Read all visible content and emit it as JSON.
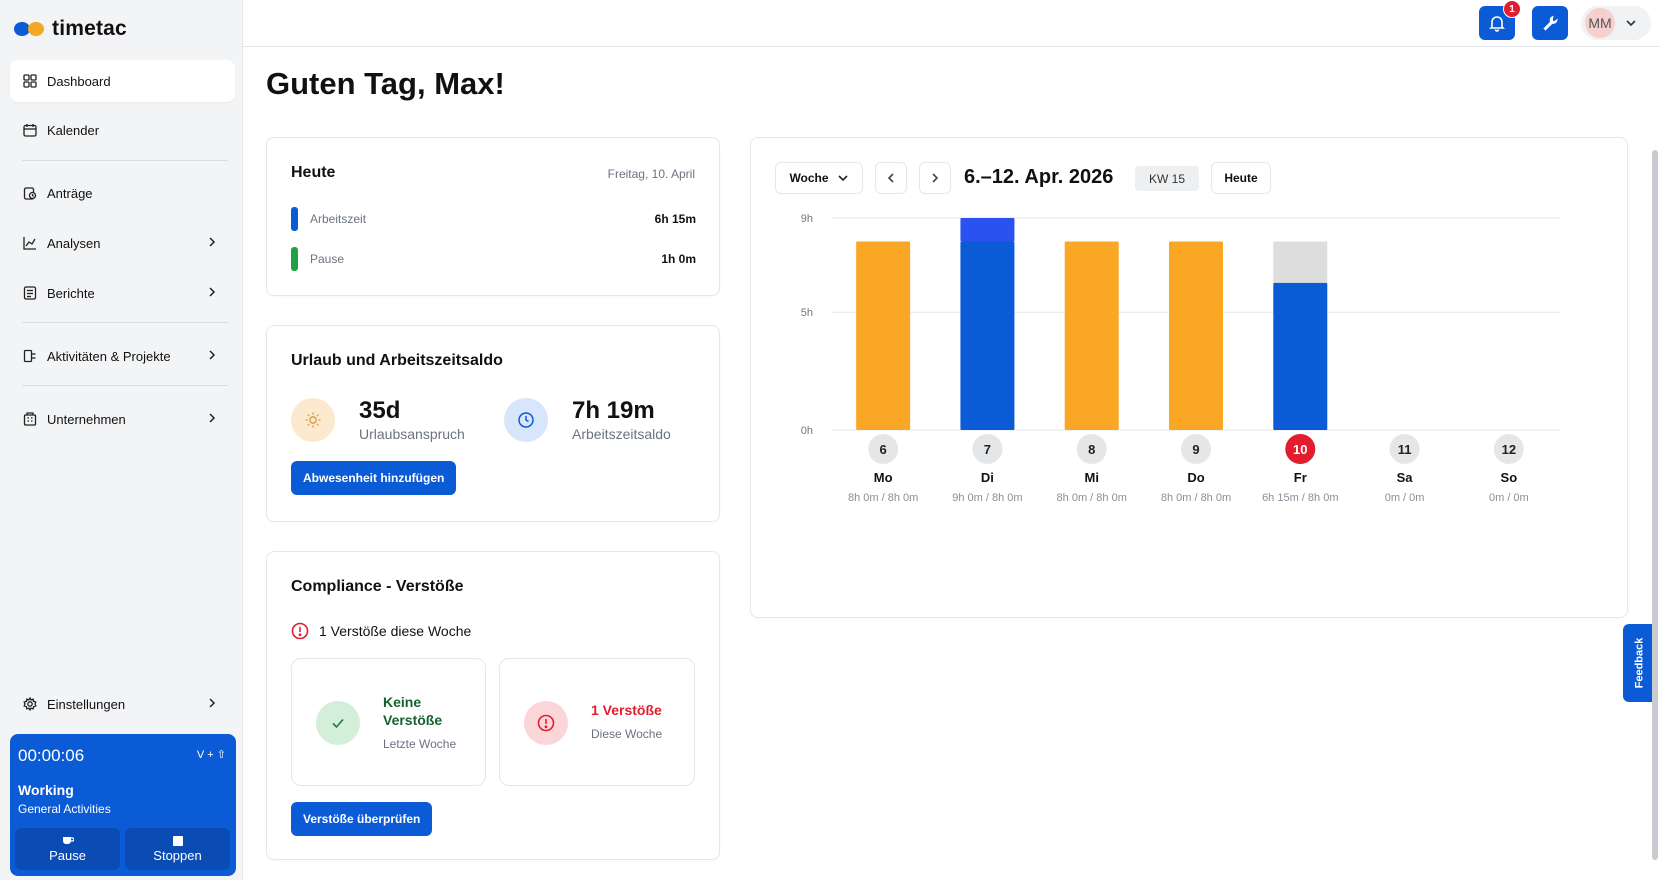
{
  "app": {
    "name": "timetac"
  },
  "sidebar": {
    "items": [
      {
        "label": "Dashboard",
        "icon": "dashboard-icon",
        "active": true
      },
      {
        "label": "Kalender",
        "icon": "calendar-icon"
      },
      {
        "label": "Anträge",
        "icon": "requests-icon"
      },
      {
        "label": "Analysen",
        "icon": "chart-icon",
        "has_children": true
      },
      {
        "label": "Berichte",
        "icon": "report-icon",
        "has_children": true
      },
      {
        "label": "Aktivitäten & Projekte",
        "icon": "projects-icon",
        "has_children": true
      },
      {
        "label": "Unternehmen",
        "icon": "company-icon",
        "has_children": true
      }
    ],
    "settings_label": "Einstellungen"
  },
  "timer": {
    "time": "00:00:06",
    "shortcut": "V + ⇧",
    "status": "Working",
    "activity": "General Activities",
    "pause_label": "Pause",
    "stop_label": "Stoppen"
  },
  "topbar": {
    "notification_count": "1",
    "user_initials": "MM"
  },
  "greeting": "Guten Tag, Max!",
  "today": {
    "title": "Heute",
    "date": "Freitag, 10. April",
    "rows": [
      {
        "label": "Arbeitszeit",
        "value": "6h 15m",
        "color": "#0b5bd7"
      },
      {
        "label": "Pause",
        "value": "1h 0m",
        "color": "#22a046"
      }
    ]
  },
  "balance": {
    "title": "Urlaub und Arbeitszeitsaldo",
    "vacation_value": "35d",
    "vacation_label": "Urlaubsanspruch",
    "worktime_value": "7h 19m",
    "worktime_label": "Arbeitszeitsaldo",
    "add_absence_label": "Abwesenheit hinzufügen"
  },
  "compliance": {
    "title": "Compliance - Verstöße",
    "count_text": "1 Verstöße diese Woche",
    "last_week_title": "Keine Verstöße",
    "last_week_sub": "Letzte Woche",
    "this_week_title": "1 Verstöße",
    "this_week_sub": "Diese Woche",
    "review_label": "Verstöße überprüfen"
  },
  "calendar": {
    "view_label": "Woche",
    "range": "6.–12. Apr. 2026",
    "week_badge": "KW 15",
    "today_label": "Heute"
  },
  "feedback_label": "Feedback",
  "colors": {
    "accent": "#0b5bd7",
    "orange": "#fba726",
    "overtime": "#2952f0",
    "remaining": "#dddddd",
    "today_red": "#e11d2e"
  },
  "chart_data": {
    "type": "bar",
    "stacked": true,
    "y_ticks": [
      "9h",
      "5h",
      "0h"
    ],
    "ylim": [
      0,
      9
    ],
    "days": [
      {
        "num": "6",
        "name": "Mo",
        "summary": "8h 0m / 8h 0m"
      },
      {
        "num": "7",
        "name": "Di",
        "summary": "9h 0m / 8h 0m"
      },
      {
        "num": "8",
        "name": "Mi",
        "summary": "8h 0m / 8h 0m"
      },
      {
        "num": "9",
        "name": "Do",
        "summary": "8h 0m / 8h 0m"
      },
      {
        "num": "10",
        "name": "Fr",
        "summary": "6h 15m / 8h 0m",
        "today": true
      },
      {
        "num": "11",
        "name": "Sa",
        "summary": "0m / 0m"
      },
      {
        "num": "12",
        "name": "So",
        "summary": "0m / 0m"
      }
    ],
    "series": [
      {
        "key": "absence",
        "values": [
          8,
          0,
          8,
          8,
          0,
          0,
          0
        ],
        "color": "#fba726"
      },
      {
        "key": "worked",
        "values": [
          0,
          8,
          0,
          0,
          6.25,
          0,
          0
        ],
        "color": "#0b5bd7"
      },
      {
        "key": "overtime",
        "values": [
          0,
          1,
          0,
          0,
          0,
          0,
          0
        ],
        "color": "#2952f0"
      },
      {
        "key": "remaining",
        "values": [
          0,
          0,
          0,
          0,
          1.75,
          0,
          0
        ],
        "color": "#dddddd"
      }
    ]
  }
}
